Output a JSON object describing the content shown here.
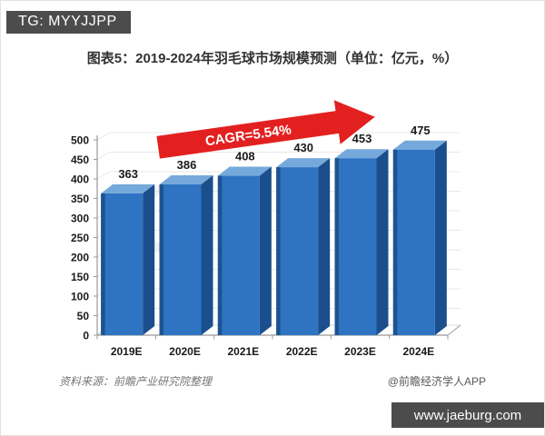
{
  "header": {
    "badge": "TG: MYYJJPP"
  },
  "title": "图表5：2019-2024年羽毛球市场规模预测（单位：亿元，%）",
  "annotation": {
    "cagr": "CAGR=5.54%"
  },
  "footer": {
    "source": "资料来源：前瞻产业研究院整理",
    "credit": "@前瞻经济学人APP",
    "site": "www.jaeburg.com"
  },
  "colors": {
    "bar_front": "#2e74c3",
    "bar_top": "#76a9db",
    "bar_side": "#1a4e8d",
    "bar_edge": "#1d5390",
    "arrow": "#e32020",
    "badge_bg": "#4c4c4c",
    "axis": "#999999",
    "grid": "#e7e7e7",
    "label": "#1a1a1a"
  },
  "chart_data": {
    "type": "bar",
    "title": "2019-2024年羽毛球市场规模预测",
    "unit": "亿元",
    "categories": [
      "2019E",
      "2020E",
      "2021E",
      "2022E",
      "2023E",
      "2024E"
    ],
    "values": [
      363,
      386,
      408,
      430,
      453,
      475
    ],
    "xlabel": "",
    "ylabel": "",
    "ylim": [
      0,
      500
    ],
    "ytick_step": 50,
    "grid": true,
    "legend": false,
    "style": "3d-column",
    "annotation": "CAGR=5.54%"
  }
}
